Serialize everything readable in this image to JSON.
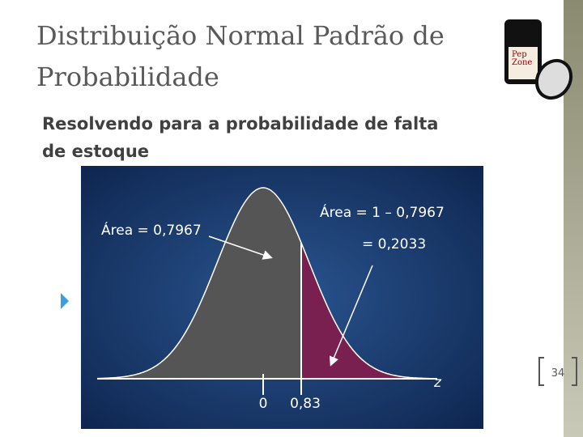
{
  "header": {
    "title_lines": [
      "Distribuição Normal Padrão de",
      "Probabilidade"
    ]
  },
  "subtitle_lines": [
    "Resolvendo para a probabilidade de falta",
    "de estoque"
  ],
  "figure": {
    "left_area_label": "Área = 0,7967",
    "right_area_label": "Área = 1 – 0,7967",
    "right_area_result": "=   0,2033",
    "axis_labels": [
      "0",
      "0,83"
    ],
    "axis_name": "z"
  },
  "logo": {
    "lines": [
      "Pep",
      "Zone"
    ]
  },
  "page_number": "34"
}
